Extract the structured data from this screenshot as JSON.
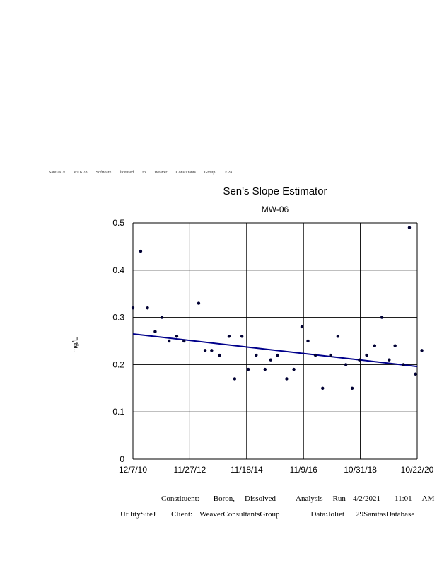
{
  "license_text": [
    "Sanitas™",
    "v.9.6.28",
    "Software",
    "licensed",
    "to",
    "Weaver",
    "Consultants",
    "Group.",
    "EPA"
  ],
  "footer": {
    "line1": [
      "Constituent:",
      "Boron,",
      "Dissolved",
      "Analysis",
      "Run",
      "4/2/2021",
      "11:01",
      "AM"
    ],
    "line2": [
      "UtilitySiteJ",
      "Client:",
      "WeaverConsultantsGroup",
      "Data:Joliet",
      "29SanitasDatabase"
    ]
  },
  "chart_data": {
    "type": "scatter",
    "title": "Sen's Slope Estimator",
    "subtitle": "MW-06",
    "ylabel": "mg/L",
    "xlabel": "",
    "xlim": [
      "2010-12-07",
      "2020-10-22"
    ],
    "ylim": [
      0,
      0.5
    ],
    "x_ticks": [
      "12/7/10",
      "11/27/12",
      "11/18/14",
      "11/9/16",
      "10/31/18",
      "10/22/20"
    ],
    "y_ticks": [
      "0",
      "0.1",
      "0.2",
      "0.3",
      "0.4",
      "0.5"
    ],
    "grid": true,
    "series": [
      {
        "points": [
          [
            "2010-12-07",
            0.32
          ],
          [
            "2011-03-15",
            0.44
          ],
          [
            "2011-06-10",
            0.32
          ],
          [
            "2011-09-15",
            0.27
          ],
          [
            "2011-12-10",
            0.3
          ],
          [
            "2012-03-10",
            0.25
          ],
          [
            "2012-06-15",
            0.26
          ],
          [
            "2012-09-15",
            0.25
          ],
          [
            "2013-03-20",
            0.33
          ],
          [
            "2013-06-10",
            0.23
          ],
          [
            "2013-09-01",
            0.23
          ],
          [
            "2013-12-10",
            0.22
          ],
          [
            "2014-04-10",
            0.26
          ],
          [
            "2014-06-20",
            0.17
          ],
          [
            "2014-09-20",
            0.26
          ],
          [
            "2014-12-10",
            0.19
          ],
          [
            "2015-03-20",
            0.22
          ],
          [
            "2015-07-10",
            0.19
          ],
          [
            "2015-09-20",
            0.21
          ],
          [
            "2015-12-15",
            0.22
          ],
          [
            "2016-04-10",
            0.17
          ],
          [
            "2016-07-10",
            0.19
          ],
          [
            "2016-10-20",
            0.28
          ],
          [
            "2017-01-05",
            0.25
          ],
          [
            "2017-04-10",
            0.22
          ],
          [
            "2017-07-10",
            0.15
          ],
          [
            "2017-10-20",
            0.22
          ],
          [
            "2018-01-20",
            0.26
          ],
          [
            "2018-05-01",
            0.2
          ],
          [
            "2018-07-20",
            0.15
          ],
          [
            "2018-10-20",
            0.21
          ],
          [
            "2019-01-20",
            0.22
          ],
          [
            "2019-05-01",
            0.24
          ],
          [
            "2019-08-01",
            0.3
          ],
          [
            "2019-11-01",
            0.21
          ],
          [
            "2020-01-15",
            0.24
          ],
          [
            "2020-05-01",
            0.2
          ],
          [
            "2020-07-15",
            0.49
          ],
          [
            "2020-10-01",
            0.18
          ],
          [
            "2020-12-20",
            0.23
          ]
        ]
      }
    ],
    "trend_line": {
      "start": [
        "2010-12-07",
        0.265
      ],
      "end": [
        "2020-10-22",
        0.196
      ]
    },
    "colors": {
      "points": "#000033",
      "trend": "#00008b",
      "grid": "#000000"
    }
  }
}
